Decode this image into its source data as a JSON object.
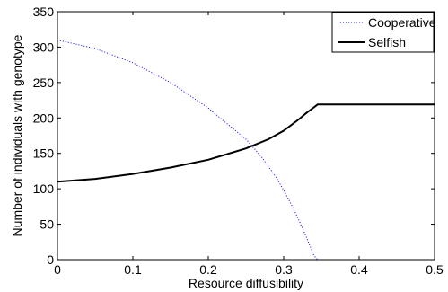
{
  "chart_data": {
    "type": "line",
    "xlabel": "Resource diffusibility",
    "ylabel": "Number of individuals with genotype",
    "xlim": [
      0,
      0.5
    ],
    "ylim": [
      0,
      350
    ],
    "xticks": [
      "0",
      "0.1",
      "0.2",
      "0.3",
      "0.4",
      "0.5"
    ],
    "yticks": [
      "0",
      "50",
      "100",
      "150",
      "200",
      "250",
      "300",
      "350"
    ],
    "grid": false,
    "legend_position": "top-right",
    "series": [
      {
        "name": "Cooperative",
        "style": "dotted",
        "color": "#0000ff",
        "points": [
          [
            0.0,
            310
          ],
          [
            0.05,
            298
          ],
          [
            0.1,
            278
          ],
          [
            0.15,
            250
          ],
          [
            0.2,
            214
          ],
          [
            0.22,
            196
          ],
          [
            0.25,
            170
          ],
          [
            0.27,
            146
          ],
          [
            0.29,
            116
          ],
          [
            0.3,
            98
          ],
          [
            0.31,
            78
          ],
          [
            0.32,
            56
          ],
          [
            0.33,
            32
          ],
          [
            0.34,
            6
          ],
          [
            0.345,
            0
          ],
          [
            0.5,
            0
          ]
        ]
      },
      {
        "name": "Selfish",
        "style": "solid",
        "color": "#000000",
        "points": [
          [
            0.0,
            110
          ],
          [
            0.05,
            114
          ],
          [
            0.1,
            121
          ],
          [
            0.15,
            130
          ],
          [
            0.2,
            141
          ],
          [
            0.25,
            157
          ],
          [
            0.28,
            170
          ],
          [
            0.3,
            182
          ],
          [
            0.32,
            198
          ],
          [
            0.33,
            207
          ],
          [
            0.34,
            215
          ],
          [
            0.345,
            219
          ],
          [
            0.5,
            219
          ]
        ]
      }
    ]
  }
}
